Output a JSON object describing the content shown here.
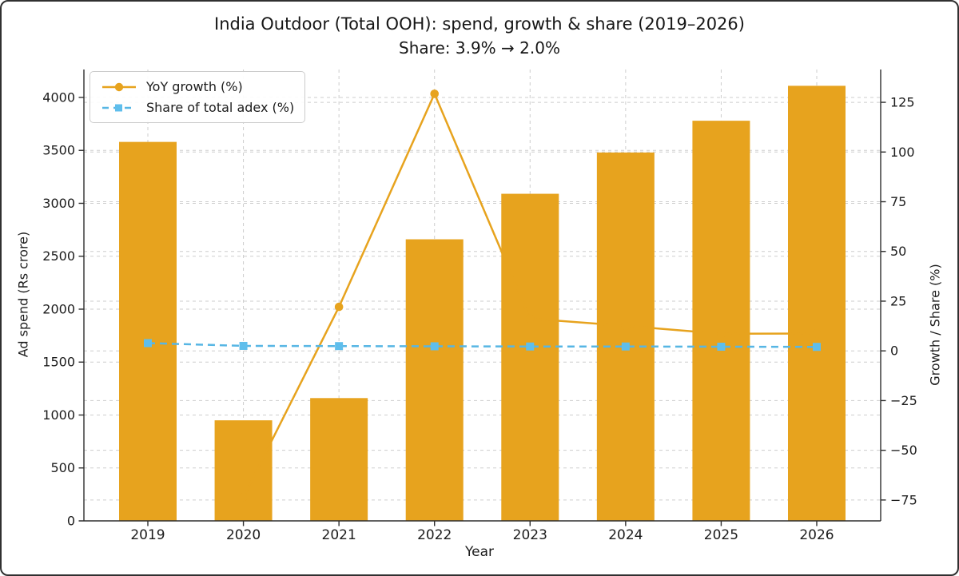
{
  "chart": {
    "title": "India Outdoor (Total OOH): spend, growth & share (2019–2026)",
    "subtitle": "Share: 3.9% → 2.0%",
    "xlabel": "Year",
    "ylabel_left": "Ad spend (Rs crore)",
    "ylabel_right": "Growth / Share (%)",
    "legend": [
      {
        "label": "YoY growth (%)",
        "marker": "circle",
        "line_style": "solid",
        "color": "#e7a31e"
      },
      {
        "label": "Share of total adex (%)",
        "marker": "square",
        "line_style": "dashed",
        "color": "#57b6e4"
      }
    ]
  },
  "colors": {
    "bar_orange": "#e7a31e",
    "line_orange": "#e7a31e",
    "line_blue": "#57b6e4",
    "marker_blue": "#5fbeec",
    "grid": "#cdcdcd",
    "spine": "#2e2e2e",
    "text": "#1c1c1c"
  },
  "chart_data": {
    "type": "bar",
    "title": "India Outdoor (Total OOH): spend, growth & share (2019–2026)",
    "subtitle": "Share: 3.9% → 2.0%",
    "xlabel": "Year",
    "ylabel_left": "Ad spend (Rs crore)",
    "ylabel_right": "Growth / Share (%)",
    "categories": [
      "2019",
      "2020",
      "2021",
      "2022",
      "2023",
      "2024",
      "2025",
      "2026"
    ],
    "series": [
      {
        "name": "Ad spend (Rs crore)",
        "type": "bar",
        "axis": "left",
        "values": [
          3580,
          950,
          1160,
          2660,
          3090,
          3480,
          3780,
          4110
        ]
      },
      {
        "name": "YoY growth (%)",
        "type": "line",
        "axis": "right",
        "marker": "circle",
        "values": [
          null,
          -73.5,
          22.1,
          129.3,
          16.2,
          12.6,
          8.6,
          8.7
        ]
      },
      {
        "name": "Share of total adex (%)",
        "type": "line",
        "axis": "right",
        "marker": "square",
        "dashed": true,
        "values": [
          3.9,
          2.5,
          2.4,
          2.3,
          2.2,
          2.2,
          2.1,
          2.0
        ]
      }
    ],
    "left_axis": {
      "ticks": [
        0,
        500,
        1000,
        1500,
        2000,
        2500,
        3000,
        3500,
        4000
      ],
      "range": [
        0,
        4264
      ]
    },
    "right_axis": {
      "ticks": [
        -75,
        -50,
        -25,
        0,
        25,
        50,
        75,
        100,
        125
      ],
      "range": [
        -85.5,
        141.5
      ]
    },
    "grid": true,
    "legend_position": "upper left"
  }
}
